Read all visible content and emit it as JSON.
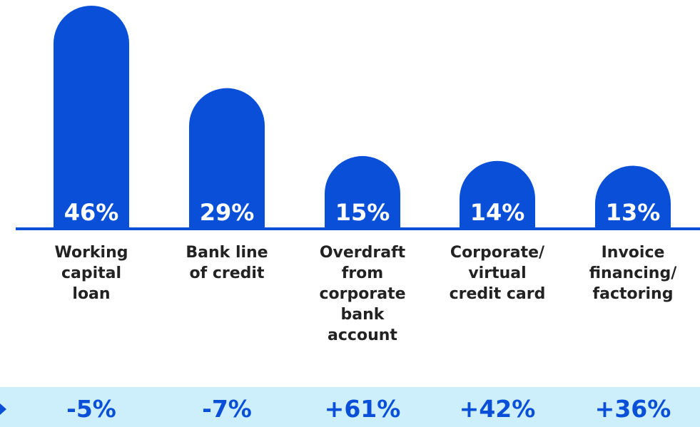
{
  "chart_data": {
    "type": "bar",
    "categories": [
      "Working\ncapital\nloan",
      "Bank line\nof credit",
      "Overdraft\nfrom\ncorporate\nbank\naccount",
      "Corporate/\nvirtual\ncredit card",
      "Invoice\nfinancing/\nfactoring"
    ],
    "values": [
      46,
      29,
      15,
      14,
      13
    ],
    "value_labels": [
      "46%",
      "29%",
      "15%",
      "14%",
      "13%"
    ],
    "changes": [
      "-5%",
      "-7%",
      "+61%",
      "+42%",
      "+36%"
    ],
    "ylim": [
      0,
      46
    ],
    "grid": false,
    "colors": {
      "bar": "#0a4fd8",
      "change_band": "#cdeefb",
      "change_text": "#0a4fd8"
    }
  }
}
